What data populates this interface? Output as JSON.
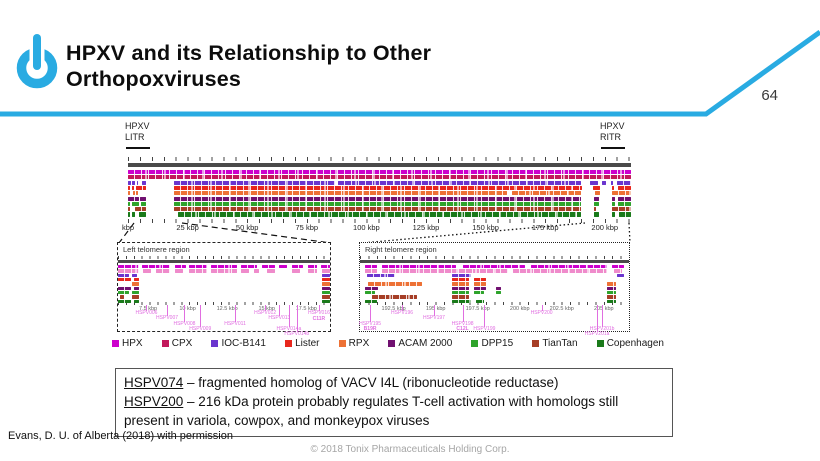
{
  "header": {
    "title_line1": "HPXV and its Relationship to Other",
    "title_line2": "Orthopoxviruses",
    "page_number": "64",
    "accent_color": "#29ABE2"
  },
  "figure": {
    "litr_line1": "HPXV",
    "litr_line2": "LITR",
    "ritr_line1": "HPXV",
    "ritr_line2": "RITR",
    "left_inset_title": "Left telomere region",
    "right_inset_title": "Right telomere region",
    "gene_label_color": "#E06EE0"
  },
  "chart_data": {
    "type": "genome-alignment",
    "unit": "kbp",
    "legend": [
      {
        "label": "HPX",
        "color": "#CC00CC"
      },
      {
        "label": "CPX",
        "color": "#C2185B"
      },
      {
        "label": "IOC-B141",
        "color": "#6A35CE"
      },
      {
        "label": "Lister",
        "color": "#E8271D"
      },
      {
        "label": "RPX",
        "color": "#ED7135"
      },
      {
        "label": "ACAM 2000",
        "color": "#701070"
      },
      {
        "label": "DPP15",
        "color": "#2EA32B"
      },
      {
        "label": "TianTan",
        "color": "#A63E26"
      },
      {
        "label": "Copenhagen",
        "color": "#1A7A1A"
      }
    ],
    "panels": [
      {
        "id": "main",
        "domain": [
          0,
          211
        ],
        "tick_kbp": 5,
        "axis_labels": [
          {
            "kbp": 0,
            "label": "kbp"
          },
          {
            "kbp": 25,
            "label": "25 kbp"
          },
          {
            "kbp": 50,
            "label": "50 kbp"
          },
          {
            "kbp": 75,
            "label": "75 kbp"
          },
          {
            "kbp": 100,
            "label": "100 kbp"
          },
          {
            "kbp": 125,
            "label": "125 kbp"
          },
          {
            "kbp": 150,
            "label": "150 kbp"
          },
          {
            "kbp": 175,
            "label": "175 kbp"
          },
          {
            "kbp": 200,
            "label": "200 kbp"
          }
        ],
        "tracks": [
          {
            "name": "HPX",
            "segments": [
              [
                0,
                211
              ]
            ]
          },
          {
            "name": "CPX",
            "segments": [
              [
                0,
                211
              ]
            ]
          },
          {
            "name": "IOC-B141",
            "segments": [
              [
                0,
                1.2
              ],
              [
                1.8,
                3
              ],
              [
                3.6,
                4.4
              ],
              [
                6,
                7.5
              ],
              [
                19.5,
                87
              ],
              [
                88,
                190
              ],
              [
                194,
                197
              ],
              [
                199,
                200.5
              ],
              [
                202.5,
                203.5
              ],
              [
                205,
                211
              ]
            ]
          },
          {
            "name": "Lister",
            "segments": [
              [
                0,
                0.8
              ],
              [
                1.5,
                2.5
              ],
              [
                3.2,
                7.5
              ],
              [
                19.5,
                190.5
              ],
              [
                195,
                198
              ],
              [
                203,
                204
              ],
              [
                205.5,
                211
              ]
            ]
          },
          {
            "name": "RPX",
            "segments": [
              [
                0,
                0.8
              ],
              [
                2,
                3
              ],
              [
                3.5,
                4.3
              ],
              [
                19.5,
                159
              ],
              [
                161,
                190
              ],
              [
                196,
                198
              ],
              [
                203,
                211
              ]
            ]
          },
          {
            "name": "ACAM 2000",
            "segments": [
              [
                0,
                4.5
              ],
              [
                5.2,
                7.5
              ],
              [
                19.5,
                190
              ],
              [
                195.5,
                197.5
              ],
              [
                203,
                204.5
              ],
              [
                205.5,
                211
              ]
            ]
          },
          {
            "name": "DPP15",
            "segments": [
              [
                0,
                0.8
              ],
              [
                1.8,
                4.5
              ],
              [
                5.5,
                7.5
              ],
              [
                19.5,
                190
              ],
              [
                195.5,
                197.5
              ],
              [
                203,
                204.5
              ],
              [
                205.5,
                211
              ]
            ]
          },
          {
            "name": "TianTan",
            "segments": [
              [
                0,
                0.8
              ],
              [
                2.8,
                7.5
              ],
              [
                19.5,
                190
              ],
              [
                195.5,
                196.5
              ],
              [
                203,
                211
              ]
            ]
          },
          {
            "name": "Copenhagen",
            "segments": [
              [
                0,
                0.8
              ],
              [
                1.8,
                2.8
              ],
              [
                4.5,
                7.5
              ],
              [
                21,
                190
              ],
              [
                195.5,
                197.5
              ],
              [
                203,
                204.5
              ],
              [
                206,
                211
              ]
            ]
          }
        ],
        "genes": []
      },
      {
        "id": "left",
        "title": "Left telomere region",
        "domain": [
          5.6,
          19
        ],
        "tick_kbp": 0.5,
        "axis_labels": [
          {
            "kbp": 7.5,
            "label": "7.5 kbp"
          },
          {
            "kbp": 10,
            "label": "10 kbp"
          },
          {
            "kbp": 12.5,
            "label": "12.5 kbp"
          },
          {
            "kbp": 15,
            "label": "15 kbp"
          },
          {
            "kbp": 17.5,
            "label": "17.5 kbp"
          }
        ],
        "tracks": [
          {
            "name": "HPX",
            "segments": [
              [
                5.6,
                6.9
              ],
              [
                7.1,
                8.9
              ],
              [
                9.2,
                9.9
              ],
              [
                10.1,
                11.2
              ],
              [
                11.5,
                13.1
              ],
              [
                13.4,
                14.4
              ],
              [
                14.7,
                15.5
              ],
              [
                15.8,
                16.3
              ],
              [
                16.6,
                17.3
              ],
              [
                17.6,
                18.2
              ],
              [
                18.4,
                19
              ]
            ]
          },
          {
            "name": "CPX",
            "color": "#EF8BCB",
            "segments": [
              [
                5.6,
                6.9
              ],
              [
                7.2,
                7.7
              ],
              [
                8.0,
                8.9
              ],
              [
                9.2,
                9.7
              ],
              [
                10.1,
                11.2
              ],
              [
                11.5,
                13.1
              ],
              [
                13.4,
                13.9
              ],
              [
                14.2,
                14.5
              ],
              [
                15.0,
                15.5
              ],
              [
                16.6,
                17.1
              ],
              [
                17.6,
                18.2
              ],
              [
                18.5,
                19
              ]
            ]
          },
          {
            "name": "IOC-B141",
            "segments": [
              [
                5.6,
                6.3
              ],
              [
                6.5,
                6.8
              ],
              [
                18.5,
                19
              ]
            ]
          },
          {
            "name": "Lister",
            "segments": [
              [
                5.6,
                6.4
              ],
              [
                6.6,
                6.9
              ],
              [
                18.5,
                19
              ]
            ]
          },
          {
            "name": "RPX",
            "segments": [
              [
                6.5,
                6.9
              ],
              [
                18.5,
                19
              ]
            ]
          },
          {
            "name": "ACAM 2000",
            "segments": [
              [
                5.6,
                6.4
              ],
              [
                6.6,
                6.9
              ],
              [
                18.5,
                19
              ]
            ]
          },
          {
            "name": "DPP15",
            "segments": [
              [
                5.6,
                6.3
              ],
              [
                6.5,
                6.9
              ],
              [
                18.5,
                19
              ]
            ]
          },
          {
            "name": "TianTan",
            "segments": [
              [
                5.7,
                6.0
              ],
              [
                6.5,
                6.9
              ],
              [
                18.5,
                19
              ]
            ]
          },
          {
            "name": "Copenhagen",
            "segments": [
              [
                5.6,
                6.4
              ],
              [
                6.6,
                6.9
              ],
              [
                18.5,
                19
              ]
            ]
          }
        ],
        "genes": [
          {
            "kbp": 7.4,
            "label": "HSPV006",
            "level": 0
          },
          {
            "kbp": 8.7,
            "label": "HSPV007",
            "level": 1
          },
          {
            "kbp": 9.8,
            "label": "HSPV008",
            "level": 2
          },
          {
            "kbp": 10.8,
            "label": "HSPV009",
            "level": 3
          },
          {
            "kbp": 13.0,
            "label": "HSPV011",
            "level": 2
          },
          {
            "kbp": 14.9,
            "label": "HSPV012",
            "level": 0
          },
          {
            "kbp": 15.8,
            "label": "HSPV013",
            "level": 1
          },
          {
            "kbp": 16.4,
            "label": "HSPV014a",
            "level": 3
          },
          {
            "kbp": 16.9,
            "label": "HSPV014b",
            "level": 4
          },
          {
            "kbp": 18.3,
            "label": "HSPV016",
            "sub": "C11R",
            "level": 0
          }
        ]
      },
      {
        "id": "right",
        "title": "Right telomere region",
        "domain": [
          190.5,
          206.5
        ],
        "tick_kbp": 0.5,
        "axis_labels": [
          {
            "kbp": 192.5,
            "label": "192.5 kbp"
          },
          {
            "kbp": 195,
            "label": "195 kbp"
          },
          {
            "kbp": 197.5,
            "label": "197.5 kbp"
          },
          {
            "kbp": 200,
            "label": "200 kbp"
          },
          {
            "kbp": 202.5,
            "label": "202.5 kbp"
          },
          {
            "kbp": 205,
            "label": "205 kbp"
          }
        ],
        "tracks": [
          {
            "name": "HPX",
            "segments": [
              [
                190.8,
                191.5
              ],
              [
                191.8,
                196.2
              ],
              [
                196.6,
                200.3
              ],
              [
                200.7,
                205.2
              ],
              [
                205.5,
                206.2
              ]
            ]
          },
          {
            "name": "CPX",
            "color": "#EF8BCB",
            "segments": [
              [
                190.8,
                191.5
              ],
              [
                191.8,
                199.3
              ],
              [
                199.6,
                205.2
              ],
              [
                205.6,
                206.1
              ]
            ]
          },
          {
            "name": "IOC-B141",
            "segments": [
              [
                190.9,
                192.6
              ],
              [
                196.0,
                197.1
              ],
              [
                205.8,
                206.2
              ]
            ]
          },
          {
            "name": "Lister",
            "segments": [
              [
                196.0,
                197.0
              ],
              [
                197.3,
                198.0
              ]
            ]
          },
          {
            "name": "RPX",
            "segments": [
              [
                191.0,
                194.2
              ],
              [
                196.0,
                197.0
              ],
              [
                197.3,
                198.0
              ],
              [
                205.2,
                205.7
              ]
            ]
          },
          {
            "name": "ACAM 2000",
            "segments": [
              [
                190.8,
                191.6
              ],
              [
                196.0,
                197.0
              ],
              [
                197.3,
                198.0
              ],
              [
                198.6,
                198.9
              ],
              [
                205.2,
                205.7
              ]
            ]
          },
          {
            "name": "DPP15",
            "segments": [
              [
                190.8,
                191.4
              ],
              [
                196.0,
                197.0
              ],
              [
                197.3,
                197.9
              ],
              [
                198.6,
                198.9
              ],
              [
                205.2,
                205.7
              ]
            ]
          },
          {
            "name": "TianTan",
            "segments": [
              [
                191.2,
                193.9
              ],
              [
                196.0,
                197.0
              ],
              [
                205.2,
                205.7
              ]
            ]
          },
          {
            "name": "Copenhagen",
            "segments": [
              [
                190.8,
                191.5
              ],
              [
                196.0,
                197.1
              ],
              [
                197.4,
                197.9
              ],
              [
                205.2,
                205.7
              ]
            ]
          }
        ],
        "genes": [
          {
            "kbp": 191.1,
            "label": "HSPV195",
            "sub": "B19R",
            "level": 2
          },
          {
            "kbp": 193.0,
            "label": "HSPV196",
            "level": 0
          },
          {
            "kbp": 194.9,
            "label": "HSPV197",
            "level": 1
          },
          {
            "kbp": 196.6,
            "label": "HSPV198",
            "sub": "C12L",
            "level": 2
          },
          {
            "kbp": 197.9,
            "label": "HSPV199",
            "level": 3
          },
          {
            "kbp": 201.3,
            "label": "HSPV200",
            "level": 0
          },
          {
            "kbp": 204.9,
            "label": "HSPV201b",
            "level": 3
          },
          {
            "kbp": 204.6,
            "label": "HSPV201a",
            "level": 4
          }
        ]
      }
    ]
  },
  "caption": {
    "entries": [
      {
        "term": "HSPV074",
        "text": " – fragmented homolog of VACV I4L (ribonucleotide reductase)"
      },
      {
        "term": "HSPV200",
        "text": " – 216 kDa protein probably regulates T-cell activation with homologs still present in variola, cowpox, and monkeypox viruses"
      }
    ]
  },
  "footer": {
    "credit": "Evans, D. U. of Alberta (2018) with permission",
    "copyright": "© 2018 Tonix Pharmaceuticals Holding Corp."
  }
}
